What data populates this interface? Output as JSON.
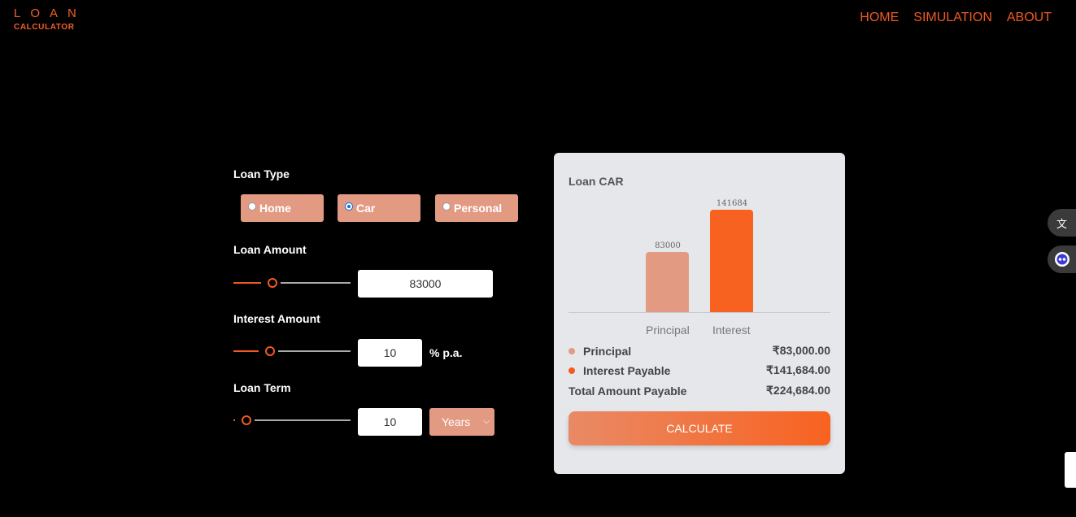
{
  "header": {
    "logo_main": "LOAN",
    "logo_sub": "CALCULATOR",
    "nav": [
      "HOME",
      "SIMULATION",
      "ABOUT"
    ]
  },
  "form": {
    "loan_type_label": "Loan Type",
    "loan_types": [
      {
        "label": "Home",
        "selected": false
      },
      {
        "label": "Car",
        "selected": true
      },
      {
        "label": "Personal",
        "selected": false
      }
    ],
    "loan_amount_label": "Loan Amount",
    "loan_amount_value": "83000",
    "loan_amount_slider_fraction": 0.32,
    "interest_label": "Interest Amount",
    "interest_value": "10",
    "interest_unit": "% p.a.",
    "interest_slider_fraction": 0.3,
    "term_label": "Loan Term",
    "term_value": "10",
    "term_slider_fraction": 0.1,
    "term_unit_selected": "Years"
  },
  "summary": {
    "title": "Loan CAR",
    "rows": [
      {
        "label": "Principal",
        "value": "₹83,000.00",
        "dot_color": "#e39a82"
      },
      {
        "label": "Interest Payable",
        "value": "₹141,684.00",
        "dot_color": "#f25a22"
      },
      {
        "label": "Total Amount Payable",
        "value": "₹224,684.00"
      }
    ],
    "calculate_label": "CALCULATE"
  },
  "chart_data": {
    "type": "bar",
    "categories": [
      "Principal",
      "Interest"
    ],
    "values": [
      83000,
      141684
    ],
    "colors": [
      "#e39a82",
      "#f86220"
    ],
    "ylim": [
      0,
      141684
    ]
  },
  "colors": {
    "accent": "#f25a22",
    "soft_accent": "#e39a82"
  },
  "side_widgets": {
    "translate_icon": "translate-icon",
    "assistant_icon": "assistant-icon"
  }
}
